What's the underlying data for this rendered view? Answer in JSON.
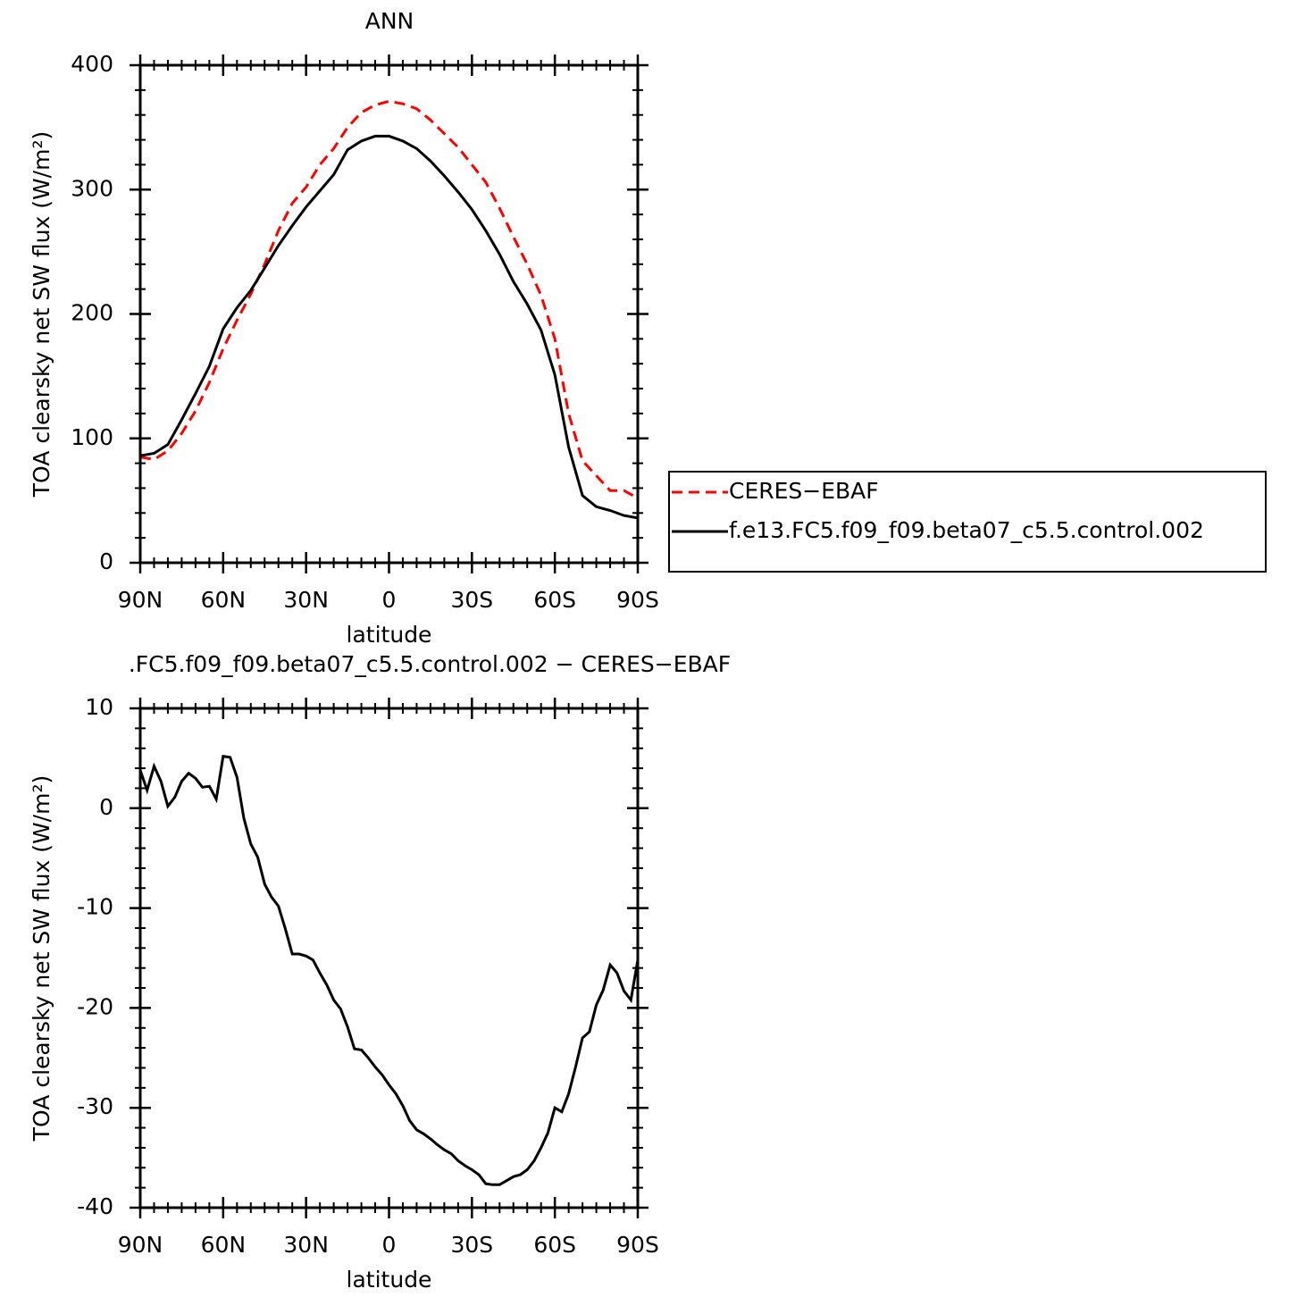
{
  "chart_data": [
    {
      "type": "line",
      "title": "ANN",
      "xlabel": "latitude",
      "ylabel": "TOA clearsky net SW flux (W/m²)",
      "x": [
        90,
        85,
        80,
        75,
        70,
        65,
        60,
        55,
        50,
        45,
        40,
        35,
        30,
        25,
        20,
        15,
        10,
        5,
        0,
        -5,
        -10,
        -15,
        -20,
        -25,
        -30,
        -35,
        -40,
        -45,
        -50,
        -55,
        -60,
        -65,
        -70,
        -75,
        -80,
        -85,
        -90
      ],
      "series": [
        {
          "name": "CERES−EBAF",
          "color": "#ff0000",
          "dashed": true,
          "values": [
            85,
            83,
            90,
            104,
            122,
            145,
            172,
            195,
            216,
            240,
            267,
            289,
            302,
            320,
            333,
            350,
            362,
            368,
            371,
            369,
            365,
            356,
            345,
            334,
            320,
            306,
            285,
            262,
            240,
            215,
            180,
            120,
            82,
            70,
            58,
            58,
            52
          ]
        },
        {
          "name": "f.e13.FC5.f09_f09.beta07_c5.5.control.002",
          "color": "#000000",
          "dashed": false,
          "values": [
            86,
            88,
            95,
            115,
            136,
            158,
            188,
            205,
            219,
            237,
            255,
            271,
            286,
            299,
            312,
            332,
            339,
            343,
            343,
            339,
            333,
            323,
            311,
            298,
            284,
            267,
            248,
            226,
            208,
            187,
            151,
            93,
            54,
            45,
            42,
            38,
            36
          ]
        }
      ],
      "xlim": [
        90,
        -90
      ],
      "xticks": [
        {
          "value": 90,
          "label": "90N"
        },
        {
          "value": 60,
          "label": "60N"
        },
        {
          "value": 30,
          "label": "30N"
        },
        0,
        {
          "value": -30,
          "label": "30S"
        },
        {
          "value": -60,
          "label": "60S"
        },
        {
          "value": -90,
          "label": "90S"
        }
      ],
      "ylim": [
        0,
        400
      ],
      "yticks": [
        0,
        100,
        200,
        300,
        400
      ],
      "legend": "right"
    },
    {
      "type": "line",
      "title": ".FC5.f09_f09.beta07_c5.5.control.002 − CERES−EBAF",
      "xlabel": "latitude",
      "ylabel": "TOA clearsky net SW flux (W/m²)",
      "x": [
        90,
        87.5,
        85,
        82.5,
        80,
        77.5,
        75,
        72.5,
        70,
        67.5,
        65,
        62.5,
        60,
        57.5,
        55,
        52.5,
        50,
        47.5,
        45,
        42.5,
        40,
        37.5,
        35,
        32.5,
        30,
        27.5,
        25,
        22.5,
        20,
        17.5,
        15,
        12.5,
        10,
        7.5,
        5,
        2.5,
        0,
        -2.5,
        -5,
        -7.5,
        -10,
        -12.5,
        -15,
        -17.5,
        -20,
        -22.5,
        -25,
        -27.5,
        -30,
        -32.5,
        -35,
        -37.5,
        -40,
        -42.5,
        -45,
        -47.5,
        -50,
        -52.5,
        -55,
        -57.5,
        -60,
        -62.5,
        -65,
        -67.5,
        -70,
        -72.5,
        -75,
        -77.5,
        -80,
        -82.5,
        -85,
        -87.5,
        -90
      ],
      "values": [
        3.8,
        1.8,
        4.2,
        2.7,
        0.2,
        1.1,
        2.7,
        3.5,
        3.0,
        2.1,
        2.2,
        0.9,
        5.2,
        5.1,
        3.1,
        -1.0,
        -3.6,
        -4.9,
        -7.6,
        -8.9,
        -9.8,
        -12.1,
        -14.6,
        -14.6,
        -14.8,
        -15.2,
        -16.5,
        -17.7,
        -19.2,
        -20.1,
        -21.9,
        -24.1,
        -24.2,
        -25.0,
        -25.9,
        -26.7,
        -27.7,
        -28.6,
        -29.8,
        -31.3,
        -32.2,
        -32.6,
        -33.1,
        -33.7,
        -34.2,
        -34.6,
        -35.3,
        -35.8,
        -36.2,
        -36.7,
        -37.6,
        -37.7,
        -37.7,
        -37.3,
        -36.9,
        -36.7,
        -36.2,
        -35.3,
        -34.0,
        -32.5,
        -30.0,
        -30.4,
        -28.6,
        -25.9,
        -23.0,
        -22.4,
        -19.7,
        -18.2,
        -15.7,
        -16.5,
        -18.3,
        -19.2,
        -15.2
      ],
      "color": "#000000",
      "xlim": [
        90,
        -90
      ],
      "xticks": [
        {
          "value": 90,
          "label": "90N"
        },
        {
          "value": 60,
          "label": "60N"
        },
        {
          "value": 30,
          "label": "30N"
        },
        0,
        {
          "value": -30,
          "label": "30S"
        },
        {
          "value": -60,
          "label": "60S"
        },
        {
          "value": -90,
          "label": "90S"
        }
      ],
      "ylim": [
        -40,
        10
      ],
      "yticks": [
        -40,
        -30,
        -20,
        -10,
        0,
        10
      ]
    }
  ]
}
